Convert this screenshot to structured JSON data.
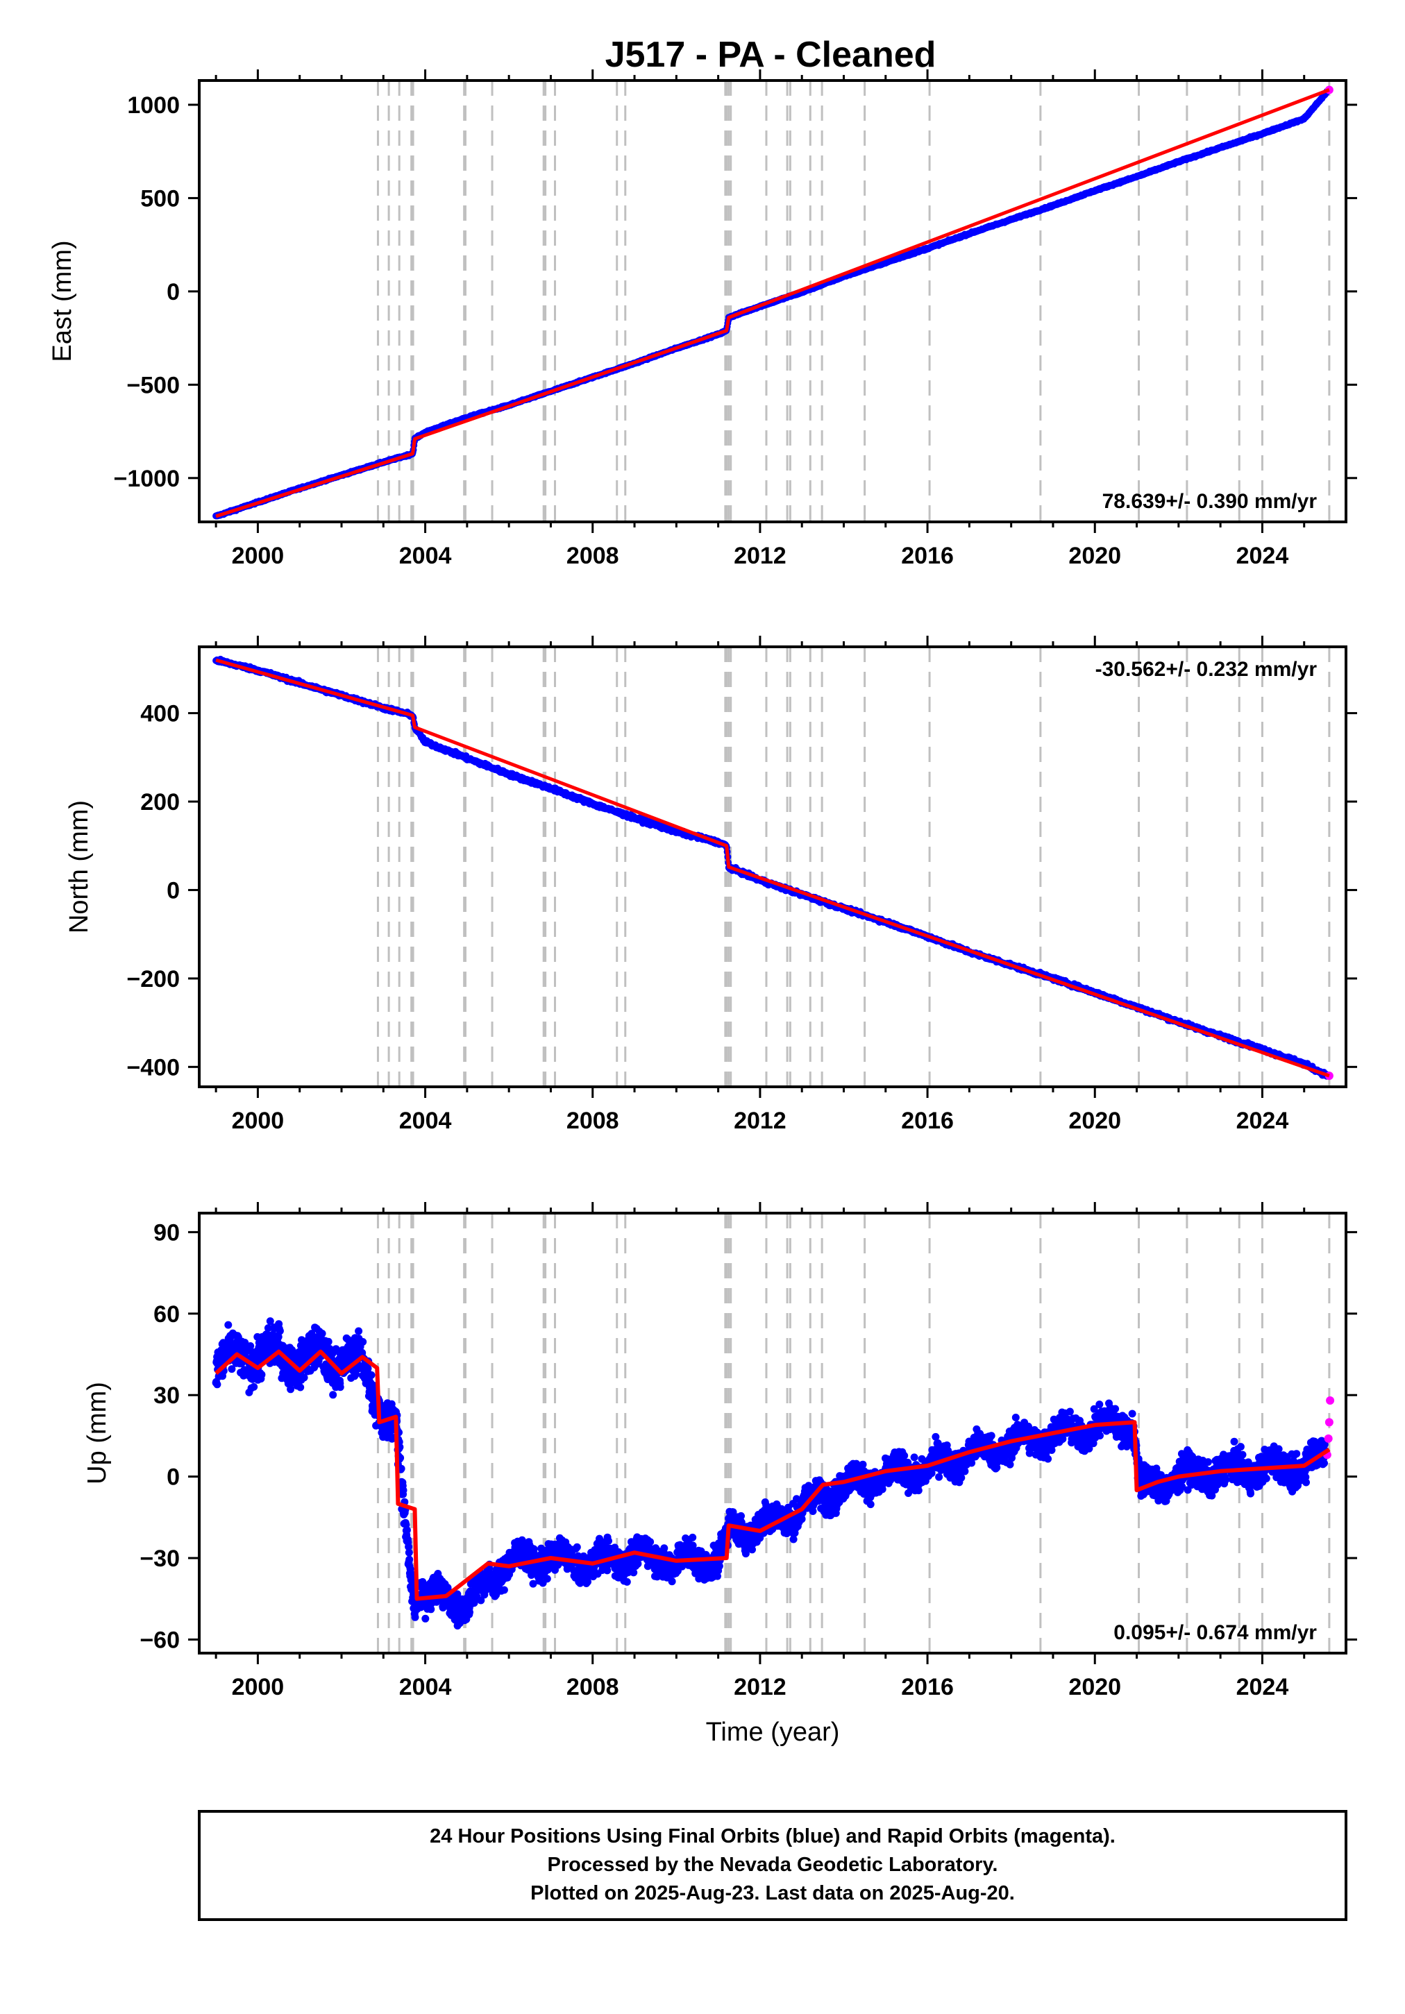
{
  "page_title": "J517  - PA - Cleaned",
  "colors": {
    "final": "#0000ff",
    "rapid": "#ff00ff",
    "model": "#ff0000",
    "steps": "#c0c0c0"
  },
  "chart_data": [
    {
      "type": "scatter",
      "component": "east",
      "ylabel": "East (mm)",
      "xlabel": "",
      "xlim": [
        1998.6,
        2026.0
      ],
      "ylim": [
        -1235,
        1130
      ],
      "xticks": [
        2000,
        2004,
        2008,
        2012,
        2016,
        2020,
        2024
      ],
      "yticks": [
        -1000,
        -500,
        0,
        500,
        1000
      ],
      "rate_text": "78.639+/- 0.390 mm/yr",
      "rate_position": "bottom-right",
      "series": [
        {
          "role": "final",
          "x": [
            1999.0,
            2000.0,
            2001.0,
            2002.0,
            2003.0,
            2003.7,
            2003.75,
            2004.0,
            2005.0,
            2006.0,
            2007.0,
            2008.0,
            2009.0,
            2010.0,
            2011.0,
            2011.2,
            2011.25,
            2012.0,
            2013.0,
            2014.0,
            2015.0,
            2016.0,
            2017.0,
            2018.0,
            2019.0,
            2020.0,
            2021.0,
            2022.0,
            2023.0,
            2024.0,
            2025.0,
            2025.55
          ],
          "y": [
            -1205,
            -1130,
            -1055,
            -985,
            -915,
            -870,
            -790,
            -755,
            -675,
            -610,
            -535,
            -460,
            -385,
            -305,
            -230,
            -210,
            -140,
            -80,
            -5,
            80,
            155,
            230,
            310,
            385,
            460,
            540,
            615,
            695,
            770,
            845,
            925,
            1070
          ]
        },
        {
          "role": "rapid",
          "x": [
            2025.6
          ],
          "y": [
            1080
          ]
        }
      ],
      "model": {
        "x": [
          1999.0,
          2003.7,
          2003.75,
          2011.2,
          2011.25,
          2025.6
        ],
        "y": [
          -1205,
          -870,
          -790,
          -210,
          -140,
          1080
        ]
      }
    },
    {
      "type": "scatter",
      "component": "north",
      "ylabel": "North (mm)",
      "xlabel": "",
      "xlim": [
        1998.6,
        2026.0
      ],
      "ylim": [
        -445,
        550
      ],
      "xticks": [
        2000,
        2004,
        2008,
        2012,
        2016,
        2020,
        2024
      ],
      "yticks": [
        -400,
        -200,
        0,
        200,
        400
      ],
      "rate_text": "-30.562+/- 0.232 mm/yr",
      "rate_position": "top-right",
      "series": [
        {
          "role": "final",
          "x": [
            1999.0,
            2000.0,
            2001.0,
            2002.0,
            2003.0,
            2003.7,
            2003.75,
            2004.0,
            2005.0,
            2006.0,
            2007.0,
            2008.0,
            2009.0,
            2010.0,
            2011.0,
            2011.2,
            2011.25,
            2012.0,
            2013.0,
            2014.0,
            2015.0,
            2016.0,
            2017.0,
            2018.0,
            2019.0,
            2020.0,
            2021.0,
            2022.0,
            2023.0,
            2024.0,
            2025.0,
            2025.55
          ],
          "y": [
            520,
            497,
            468,
            440,
            412,
            395,
            368,
            335,
            298,
            262,
            230,
            195,
            163,
            132,
            108,
            100,
            52,
            22,
            -10,
            -42,
            -72,
            -105,
            -140,
            -170,
            -200,
            -232,
            -265,
            -298,
            -330,
            -360,
            -393,
            -420
          ]
        },
        {
          "role": "rapid",
          "x": [
            2025.6
          ],
          "y": [
            -420
          ]
        }
      ],
      "model": {
        "x": [
          1999.0,
          2003.7,
          2003.75,
          2011.2,
          2011.25,
          2025.6
        ],
        "y": [
          520,
          395,
          368,
          100,
          52,
          -420
        ]
      }
    },
    {
      "type": "scatter",
      "component": "up",
      "ylabel": "Up (mm)",
      "xlabel": "Time (year)",
      "xlim": [
        1998.6,
        2026.0
      ],
      "ylim": [
        -65,
        97
      ],
      "xticks": [
        2000,
        2004,
        2008,
        2012,
        2016,
        2020,
        2024
      ],
      "yticks": [
        -60,
        -30,
        0,
        30,
        60,
        90
      ],
      "rate_text": "0.095+/- 0.674 mm/yr",
      "rate_position": "bottom-right",
      "series": [
        {
          "role": "final",
          "x": [
            1999.0,
            1999.5,
            2000.0,
            2000.5,
            2001.0,
            2001.5,
            2002.0,
            2002.5,
            2003.0,
            2003.3,
            2003.7,
            2004.0,
            2004.5,
            2005.0,
            2005.5,
            2006.0,
            2007.0,
            2008.0,
            2009.0,
            2010.0,
            2011.0,
            2011.3,
            2012.0,
            2013.0,
            2014.0,
            2015.0,
            2016.0,
            2017.0,
            2018.0,
            2019.0,
            2020.0,
            2020.9,
            2021.1,
            2022.0,
            2023.0,
            2024.0,
            2025.0,
            2025.5
          ],
          "y": [
            38,
            46,
            42,
            48,
            40,
            47,
            40,
            44,
            20,
            18,
            -42,
            -45,
            -44,
            -48,
            -38,
            -32,
            -30,
            -32,
            -29,
            -31,
            -30,
            -20,
            -18,
            -12,
            -3,
            0,
            3,
            8,
            12,
            15,
            18,
            20,
            -5,
            0,
            2,
            3,
            4,
            8
          ]
        },
        {
          "role": "rapid",
          "x": [
            2025.55,
            2025.58,
            2025.6,
            2025.62
          ],
          "y": [
            8,
            14,
            20,
            28
          ]
        }
      ],
      "model": {
        "x": [
          1999.0,
          1999.5,
          2000.0,
          2000.5,
          2001.0,
          2001.5,
          2002.0,
          2002.5,
          2002.85,
          2002.9,
          2003.3,
          2003.35,
          2003.75,
          2003.8,
          2004.5,
          2005.5,
          2006.0,
          2007.0,
          2008.0,
          2009.0,
          2010.0,
          2011.2,
          2011.25,
          2012.0,
          2013.0,
          2013.5,
          2014.0,
          2015.0,
          2016.0,
          2017.0,
          2018.0,
          2019.0,
          2020.0,
          2020.95,
          2021.0,
          2021.5,
          2022.0,
          2023.0,
          2024.0,
          2025.0,
          2025.6
        ],
        "y": [
          38,
          45,
          40,
          46,
          39,
          46,
          38,
          44,
          40,
          20,
          22,
          -10,
          -12,
          -45,
          -44,
          -32,
          -33,
          -30,
          -32,
          -28,
          -31,
          -30,
          -18,
          -20,
          -12,
          -3,
          -2,
          2,
          4,
          9,
          13,
          16,
          19,
          20,
          -5,
          -2,
          0,
          2,
          3,
          4,
          10
        ]
      }
    }
  ],
  "step_lines": [
    2002.87,
    2003.13,
    2003.38,
    2003.67,
    2003.71,
    2004.93,
    2004.96,
    2005.6,
    2006.83,
    2006.87,
    2007.1,
    2008.58,
    2008.78,
    2011.17,
    2011.2,
    2011.25,
    2011.3,
    2012.15,
    2012.65,
    2012.72,
    2013.2,
    2013.48,
    2014.5,
    2016.05,
    2018.7,
    2021.05,
    2022.2,
    2023.45,
    2024.0,
    2025.6
  ],
  "footer": {
    "line1": "24 Hour Positions Using Final Orbits (blue) and Rapid Orbits (magenta).",
    "line2": "Processed by the Nevada Geodetic Laboratory.",
    "line3": "Plotted on 2025-Aug-23. Last data on 2025-Aug-20."
  }
}
